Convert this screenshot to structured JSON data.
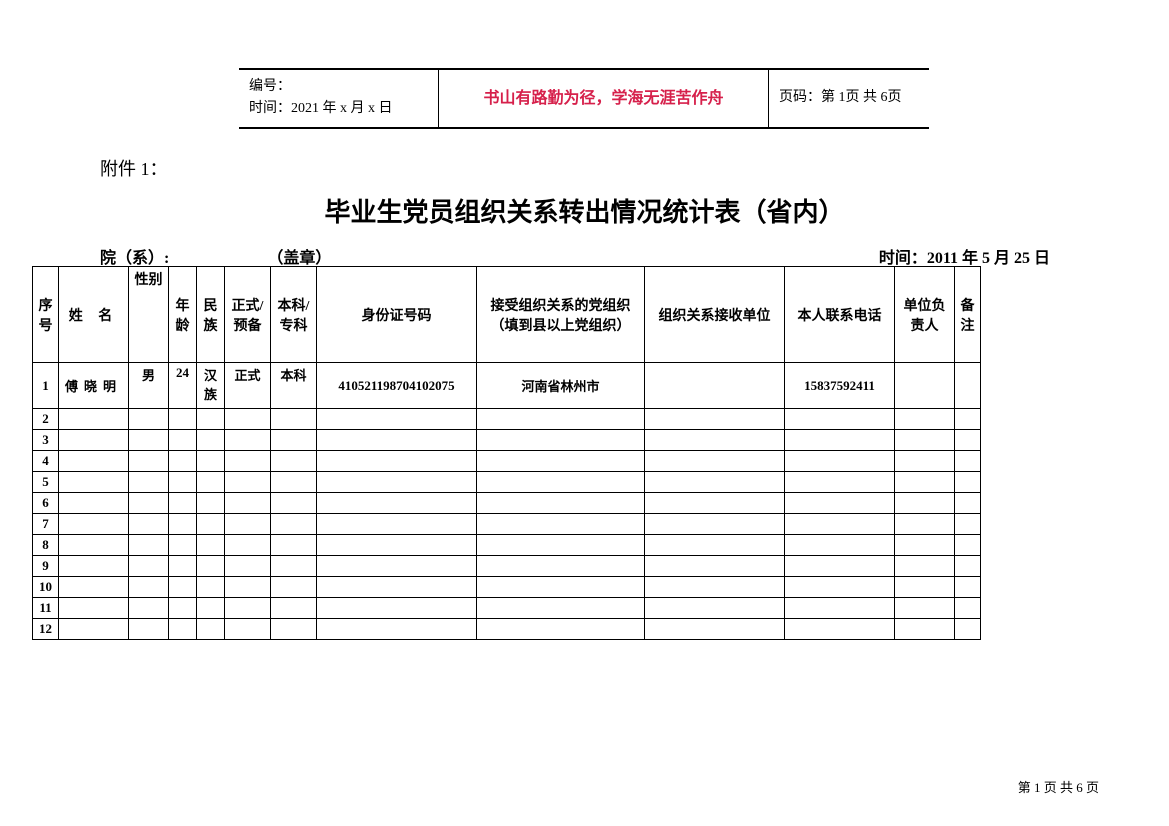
{
  "header": {
    "number_label": "编号：",
    "time_label": "时间：2021 年 x 月 x 日",
    "motto": "书山有路勤为径，学海无涯苦作舟",
    "page_info": "页码：第 1页  共 6页"
  },
  "attachment": "附件 1：",
  "title": "毕业生党员组织关系转出情况统计表（省内）",
  "sub": {
    "dept": "院（系）:",
    "stamp": "（盖章）",
    "date": "时间：2011 年 5 月 25 日"
  },
  "columns": {
    "seq": "序号",
    "name": "姓  名",
    "sex": "性别",
    "age": "年龄",
    "ethnicity": "民族",
    "status": "正式/预备",
    "degree": "本科/专科",
    "id_number": "身份证号码",
    "recv_org": "接受组织关系的党组织（填到县以上党组织）",
    "recv_unit": "组织关系接收单位",
    "phone": "本人联系电话",
    "responsible": "单位负责人",
    "note": "备注"
  },
  "rows": [
    {
      "seq": "1",
      "name": "傅晓明",
      "sex": "男",
      "age": "24",
      "ethnicity": "汉族",
      "status": "正式",
      "degree": "本科",
      "id_number": "410521198704102075",
      "recv_org": "河南省林州市",
      "recv_unit": "",
      "phone": "15837592411",
      "responsible": "",
      "note": ""
    }
  ],
  "empty_seq": [
    "2",
    "3",
    "4",
    "5",
    "6",
    "7",
    "8",
    "9",
    "10",
    "11",
    "12"
  ],
  "footer": "第 1 页 共 6 页"
}
